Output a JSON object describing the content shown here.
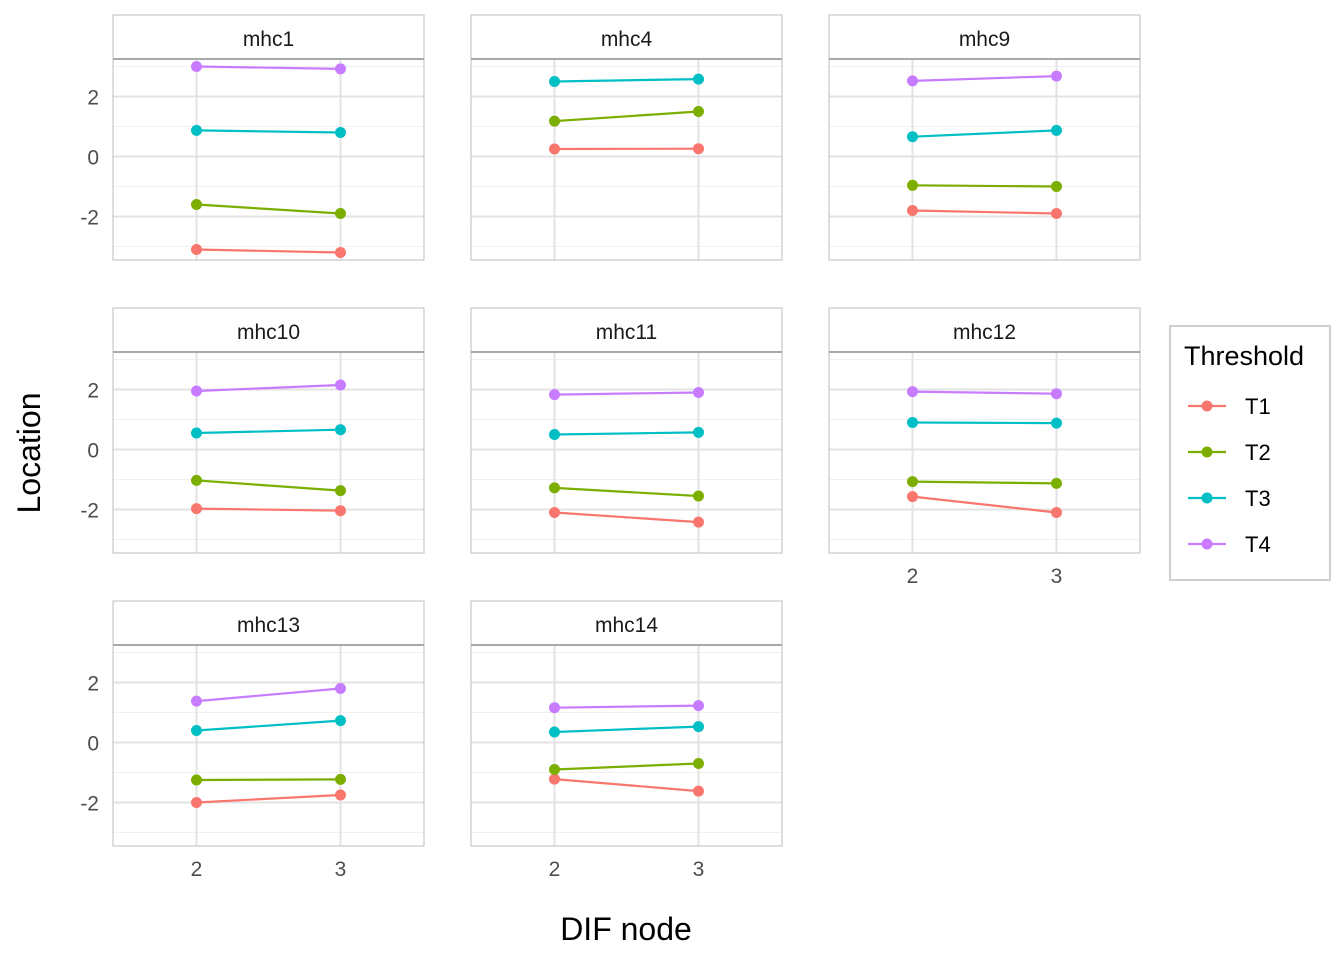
{
  "chart_data": {
    "type": "line",
    "xlabel": "DIF node",
    "ylabel": "Location",
    "x": [
      2,
      3
    ],
    "x_ticks": [
      "2",
      "3"
    ],
    "ylim": [
      -3.45,
      3.25
    ],
    "y_ticks": [
      -2,
      0,
      2
    ],
    "y_tick_labels": [
      "-2",
      "0",
      "2"
    ],
    "grid": true,
    "legend": {
      "title": "Threshold",
      "position": "right",
      "entries": [
        "T1",
        "T2",
        "T3",
        "T4"
      ]
    },
    "colors": {
      "T1": "#F8766D",
      "T2": "#7CAE00",
      "T3": "#00BFC4",
      "T4": "#C77CFF"
    },
    "panels": [
      {
        "name": "mhc1",
        "series": [
          {
            "name": "T1",
            "values": [
              -3.1,
              -3.2
            ]
          },
          {
            "name": "T2",
            "values": [
              -1.6,
              -1.9
            ]
          },
          {
            "name": "T3",
            "values": [
              0.87,
              0.8
            ]
          },
          {
            "name": "T4",
            "values": [
              3.0,
              2.92
            ]
          }
        ]
      },
      {
        "name": "mhc4",
        "series": [
          {
            "name": "T1",
            "values": [
              0.25,
              0.26
            ]
          },
          {
            "name": "T2",
            "values": [
              1.18,
              1.5
            ]
          },
          {
            "name": "T3",
            "values": [
              2.5,
              2.58
            ]
          },
          {
            "name": "T4",
            "values": null
          }
        ]
      },
      {
        "name": "mhc9",
        "series": [
          {
            "name": "T1",
            "values": [
              -1.8,
              -1.9
            ]
          },
          {
            "name": "T2",
            "values": [
              -0.96,
              -1.0
            ]
          },
          {
            "name": "T3",
            "values": [
              0.66,
              0.87
            ]
          },
          {
            "name": "T4",
            "values": [
              2.52,
              2.68
            ]
          }
        ]
      },
      {
        "name": "mhc10",
        "series": [
          {
            "name": "T1",
            "values": [
              -1.97,
              -2.04
            ]
          },
          {
            "name": "T2",
            "values": [
              -1.03,
              -1.37
            ]
          },
          {
            "name": "T3",
            "values": [
              0.55,
              0.66
            ]
          },
          {
            "name": "T4",
            "values": [
              1.95,
              2.15
            ]
          }
        ]
      },
      {
        "name": "mhc11",
        "series": [
          {
            "name": "T1",
            "values": [
              -2.1,
              -2.42
            ]
          },
          {
            "name": "T2",
            "values": [
              -1.28,
              -1.55
            ]
          },
          {
            "name": "T3",
            "values": [
              0.5,
              0.57
            ]
          },
          {
            "name": "T4",
            "values": [
              1.83,
              1.9
            ]
          }
        ]
      },
      {
        "name": "mhc12",
        "series": [
          {
            "name": "T1",
            "values": [
              -1.57,
              -2.1
            ]
          },
          {
            "name": "T2",
            "values": [
              -1.07,
              -1.13
            ]
          },
          {
            "name": "T3",
            "values": [
              0.9,
              0.88
            ]
          },
          {
            "name": "T4",
            "values": [
              1.93,
              1.86
            ]
          }
        ]
      },
      {
        "name": "mhc13",
        "series": [
          {
            "name": "T1",
            "values": [
              -2.0,
              -1.75
            ]
          },
          {
            "name": "T2",
            "values": [
              -1.25,
              -1.23
            ]
          },
          {
            "name": "T3",
            "values": [
              0.4,
              0.73
            ]
          },
          {
            "name": "T4",
            "values": [
              1.38,
              1.8
            ]
          }
        ]
      },
      {
        "name": "mhc14",
        "series": [
          {
            "name": "T1",
            "values": [
              -1.22,
              -1.62
            ]
          },
          {
            "name": "T2",
            "values": [
              -0.9,
              -0.7
            ]
          },
          {
            "name": "T3",
            "values": [
              0.35,
              0.53
            ]
          },
          {
            "name": "T4",
            "values": [
              1.16,
              1.23
            ]
          }
        ]
      }
    ]
  }
}
